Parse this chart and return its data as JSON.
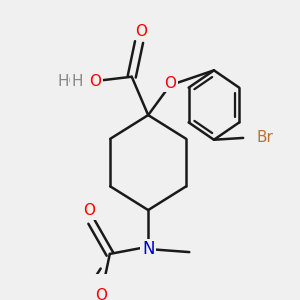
{
  "bg_color": "#f0f0f0",
  "bond_color": "#1a1a1a",
  "bond_width": 1.8,
  "atom_colors": {
    "O": "#ff0000",
    "N": "#0000cc",
    "Br": "#b87333",
    "C": "#1a1a1a",
    "H": "#888888"
  },
  "fig_width": 3.0,
  "fig_height": 3.0,
  "dpi": 100
}
